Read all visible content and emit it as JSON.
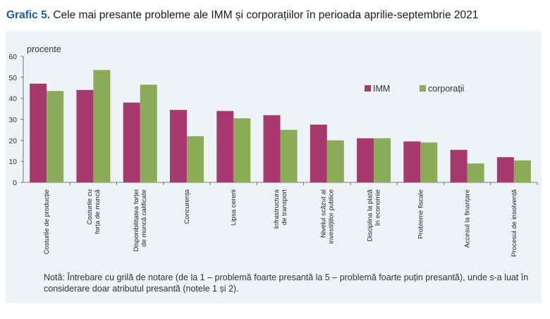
{
  "title": {
    "number": "Grafic 5.",
    "text": "Cele mai presante probleme ale IMM și corporațiilor în perioada aprilie-septembrie 2021"
  },
  "note": "Notă: Întrebare cu grilă de notare (de la 1 – problemă foarte presantă la 5 – problemă foarte puțin presantă), unde s-a luat în considerare doar atributul presantă (notele 1 și 2).",
  "chart_data": {
    "type": "bar",
    "ylabel": "procente",
    "ylim": [
      0,
      60
    ],
    "yticks": [
      0,
      10,
      20,
      30,
      40,
      50,
      60
    ],
    "grid": false,
    "legend_position": "top-right",
    "categories": [
      [
        "Costurile de producție"
      ],
      [
        "Costurile cu",
        "forța de muncă"
      ],
      [
        "Disponibilitatea forței",
        "de muncă calificate"
      ],
      [
        "Concurența"
      ],
      [
        "Lipsa cererii"
      ],
      [
        "Infrastructura",
        "de transport"
      ],
      [
        "Nivelul scăzut al",
        "investițiilor publice"
      ],
      [
        "Disciplina la plată",
        "în economie"
      ],
      [
        "Probleme fiscale"
      ],
      [
        "Accesul la finanțare"
      ],
      [
        "Procesul de insolvență"
      ]
    ],
    "series": [
      {
        "name": "IMM",
        "color": "#a8396f",
        "values": [
          47,
          44,
          38,
          34.5,
          34,
          32,
          27.5,
          21,
          19.5,
          15.5,
          12
        ]
      },
      {
        "name": "corporații",
        "color": "#8aab57",
        "values": [
          43.5,
          53.5,
          46.5,
          22,
          30.5,
          25,
          20,
          21,
          19,
          9,
          10.5
        ]
      }
    ]
  }
}
